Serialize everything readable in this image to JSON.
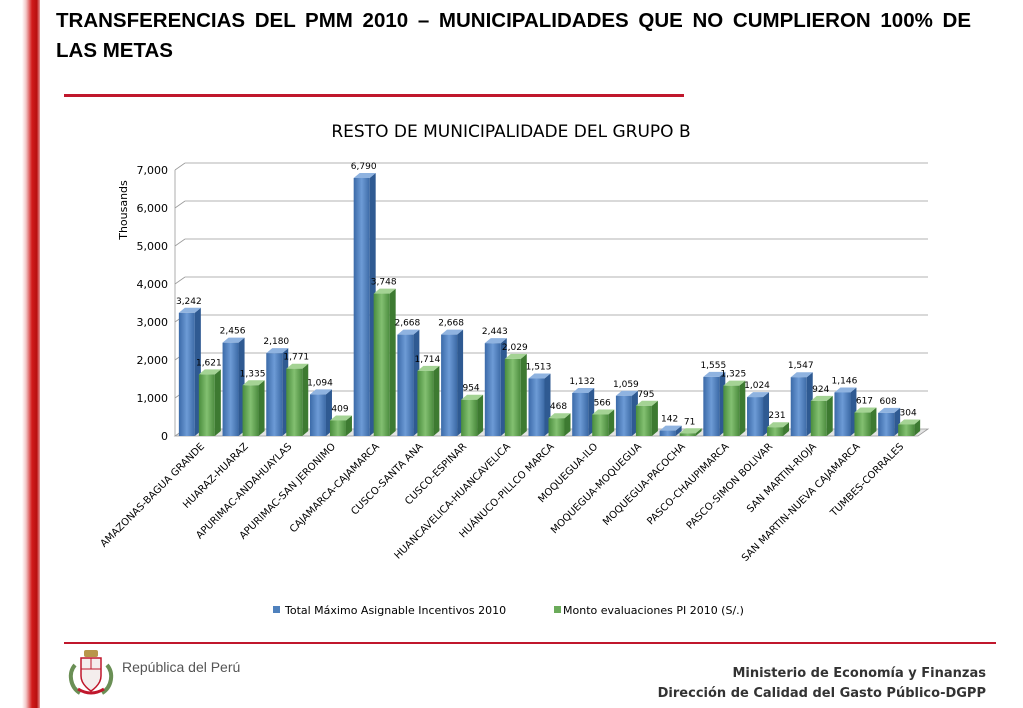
{
  "slide": {
    "title": "TRANSFERENCIAS DEL PMM 2010 – MUNICIPALIDADES QUE NO CUMPLIERON 100% DE LAS METAS"
  },
  "footer": {
    "republic": "República del Perú",
    "ministry": "Ministerio de Economía y Finanzas",
    "directorate": "Dirección de Calidad del Gasto Público-DGPP"
  },
  "colors": {
    "accent_red": "#c0172c",
    "series_blue": "#4f81bd",
    "series_green": "#6bab5a"
  },
  "chart_data": {
    "type": "bar",
    "title": "RESTO DE MUNICIPALIDADE DEL GRUPO B",
    "ylabel": "Thousands",
    "ylim": [
      0,
      7000
    ],
    "yticks": [
      0,
      1000,
      2000,
      3000,
      4000,
      5000,
      6000,
      7000
    ],
    "ytick_labels": [
      "0",
      "1,000",
      "2,000",
      "3,000",
      "4,000",
      "5,000",
      "6,000",
      "7,000"
    ],
    "grid": true,
    "legend_position": "bottom",
    "style": "3d-clustered-column",
    "categories": [
      "AMAZONAS-BAGUA GRANDE",
      "HUARAZ-HUARAZ",
      "APURIMAC-ANDAHUAYLAS",
      "APURIMAC-SAN JERONIMO",
      "CAJAMARCA-CAJAMARCA",
      "CUSCO-SANTA ANA",
      "CUSCO-ESPINAR",
      "HUANCAVELICA-HUANCAVELICA",
      "HUÁNUCO-PILLCO MARCA",
      "MOQUEGUA-ILO",
      "MOQUEGUA-MOQUEGUA",
      "MOQUEGUA-PACOCHA",
      "PASCO-CHAUPIMARCA",
      "PASCO-SIMON BOLIVAR",
      "SAN MARTIN-RIOJA",
      "SAN MARTIN-NUEVA CAJAMARCA",
      "TUMBES-CORRALES"
    ],
    "series": [
      {
        "name": "Total Máximo Asignable Incentivos 2010",
        "color": "#4f81bd",
        "values": [
          3242,
          2456,
          2180,
          1094,
          6790,
          2668,
          2668,
          2443,
          1513,
          1132,
          1059,
          142,
          1555,
          1024,
          1547,
          1146,
          608
        ],
        "labels": [
          "3,242",
          "2,456",
          "2,180",
          "1,094",
          "6,790",
          "2,668",
          "2,668",
          "2,443",
          "1,513",
          "1,132",
          "1,059",
          "142",
          "1,555",
          "1,024",
          "1,547",
          "1,146",
          "608"
        ]
      },
      {
        "name": "Monto evaluaciones PI 2010 (S/.)",
        "color": "#6bab5a",
        "values": [
          1621,
          1335,
          1771,
          409,
          3748,
          1714,
          954,
          2029,
          468,
          566,
          795,
          71,
          1325,
          231,
          924,
          617,
          304
        ],
        "labels": [
          "1,621",
          "1,335",
          "1,771",
          "409",
          "3,748",
          "1,714",
          "954",
          "2,029",
          "468",
          "566",
          "795",
          "71",
          "1,325",
          "231",
          "924",
          "617",
          "304"
        ]
      }
    ]
  }
}
